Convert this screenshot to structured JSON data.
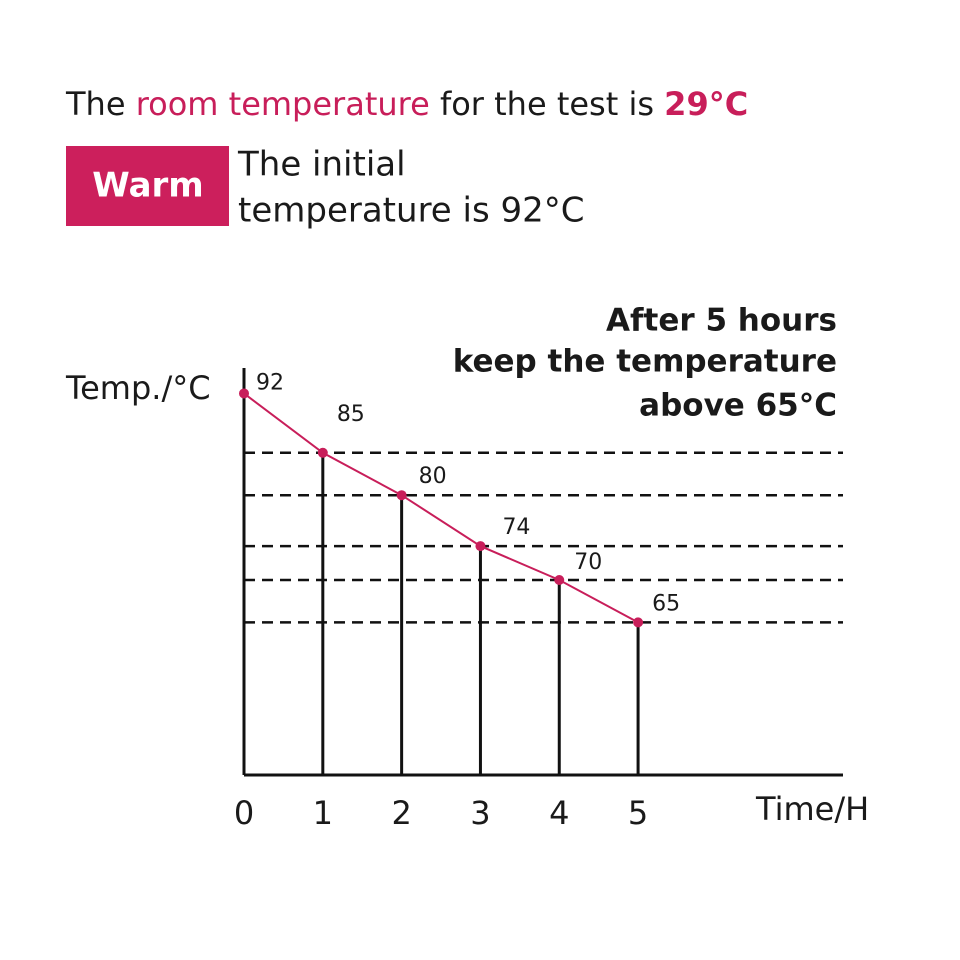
{
  "chart_data": {
    "type": "line",
    "title_parts": [
      "The ",
      "room temperature",
      " for the test is ",
      "29°C"
    ],
    "badge": "Warm",
    "note_lines": [
      "The initial",
      "temperature is 92°C"
    ],
    "annotation_lines": [
      "After 5 hours",
      "keep the temperature",
      "above 65°C"
    ],
    "y_label": "Temp./°C",
    "x_label": "Time/H",
    "x": [
      0,
      1,
      2,
      3,
      4,
      5
    ],
    "values": [
      92,
      85,
      80,
      74,
      70,
      65
    ],
    "color": "#c81e5a",
    "xlim": [
      0,
      7.6
    ],
    "xticks": [
      0,
      1,
      2,
      3,
      4,
      5
    ],
    "ylim": [
      47,
      95
    ]
  }
}
